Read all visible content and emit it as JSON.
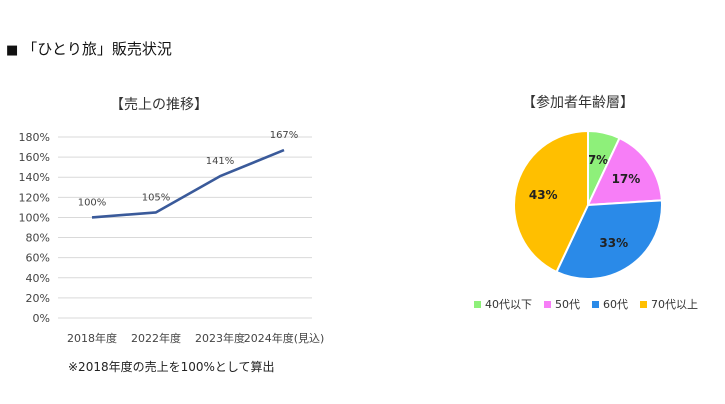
{
  "page": {
    "title": "「ひとり旅」販売状況",
    "bullet": "■"
  },
  "note": "※2018年度の売上を100%として算出",
  "chart_data": [
    {
      "type": "line",
      "title": "【売上の推移】",
      "categories": [
        "2018年度",
        "2022年度",
        "2023年度",
        "2024年度(見込)"
      ],
      "series": [
        {
          "values": [
            100,
            105,
            141,
            167
          ]
        }
      ],
      "data_labels": [
        "100%",
        "105%",
        "141%",
        "167%"
      ],
      "y_ticks": [
        "0%",
        "20%",
        "40%",
        "60%",
        "80%",
        "100%",
        "120%",
        "140%",
        "160%",
        "180%"
      ],
      "ylim": [
        0,
        180
      ],
      "grid": true,
      "line_color": "#3a5a9a"
    },
    {
      "type": "pie",
      "title": "【参加者年齢層】",
      "labels": [
        "40代以下",
        "50代",
        "60代",
        "70代以上"
      ],
      "values": [
        7,
        17,
        33,
        43
      ],
      "value_labels": [
        "7%",
        "17%",
        "33%",
        "43%"
      ],
      "colors": [
        "#8ef07a",
        "#f77ef7",
        "#2a8ae8",
        "#ffbf00"
      ],
      "legend": "bottom"
    }
  ]
}
